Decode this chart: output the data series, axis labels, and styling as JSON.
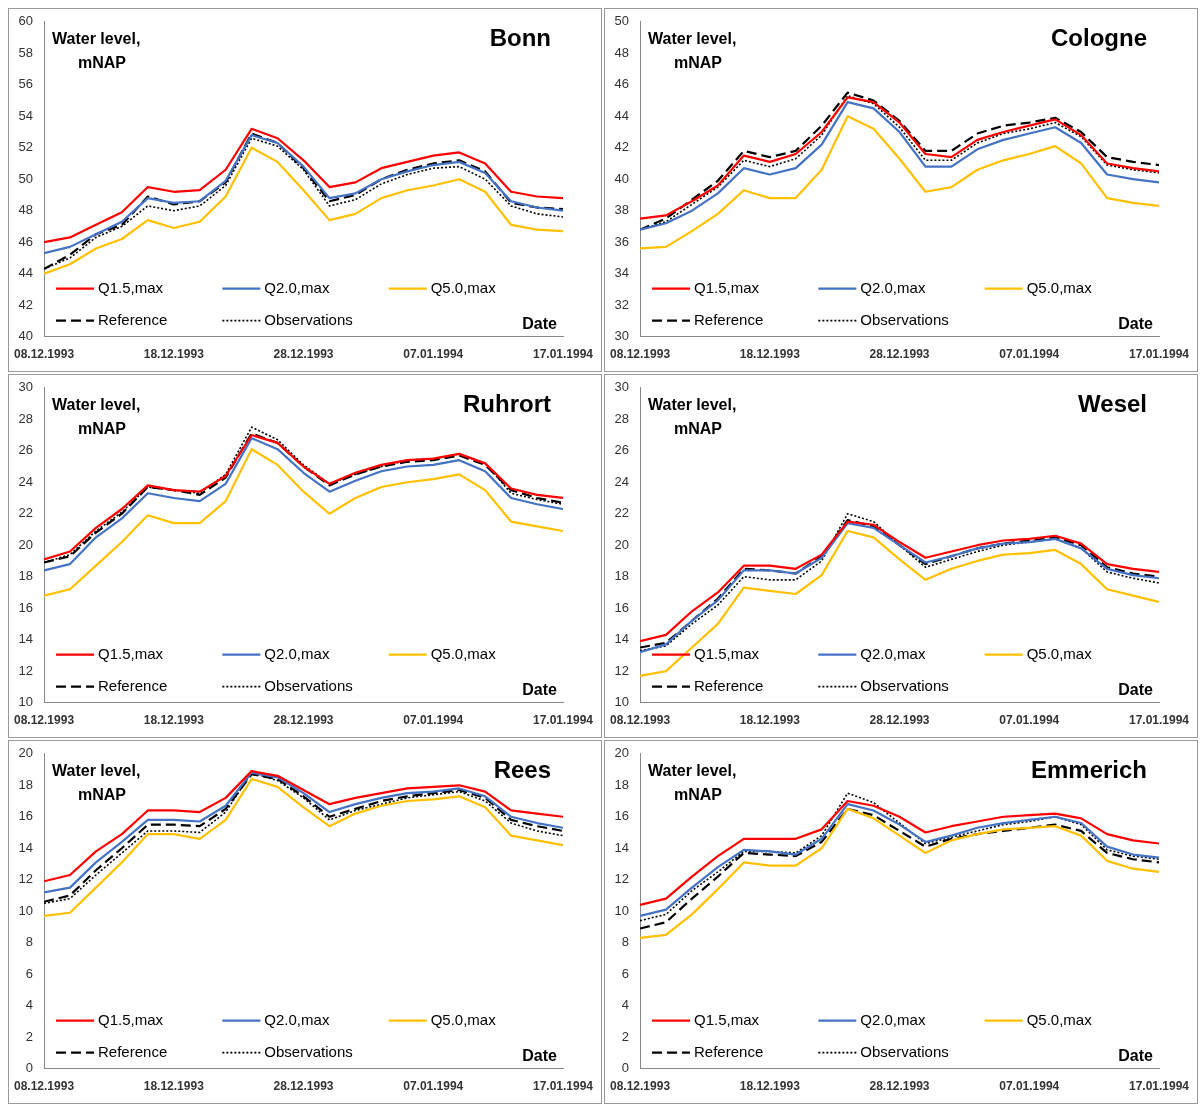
{
  "chart_data": [
    {
      "type": "line",
      "title": "Bonn",
      "ylabel": "Water level, mNAP",
      "xlabel": "Date",
      "legend": "bottom",
      "ylim": [
        40,
        60
      ],
      "yticks": [
        40,
        42,
        44,
        46,
        48,
        50,
        52,
        54,
        56,
        58,
        60
      ],
      "xlim": [
        "1993-12-08",
        "1994-01-17"
      ],
      "xticks": [
        {
          "value": "1993-12-08",
          "label": "08.12.1993"
        },
        {
          "value": "1993-12-18",
          "label": "18.12.1993"
        },
        {
          "value": "1993-12-28",
          "label": "28.12.1993"
        },
        {
          "value": "1994-01-07",
          "label": "07.01.1994"
        },
        {
          "value": "1994-01-17",
          "label": "17.01.1994"
        }
      ],
      "x": [
        "1993-12-08",
        "1993-12-10",
        "1993-12-12",
        "1993-12-14",
        "1993-12-16",
        "1993-12-18",
        "1993-12-20",
        "1993-12-22",
        "1993-12-24",
        "1993-12-26",
        "1993-12-28",
        "1993-12-30",
        "1994-01-01",
        "1994-01-03",
        "1994-01-05",
        "1994-01-07",
        "1994-01-09",
        "1994-01-11",
        "1994-01-13",
        "1994-01-15",
        "1994-01-17"
      ],
      "series": [
        {
          "name": "Q1.5,max",
          "color": "#ff0000",
          "line_style": "solid",
          "values": [
            46.0,
            46.3,
            47.1,
            47.9,
            49.5,
            49.2,
            49.3,
            50.6,
            53.2,
            52.6,
            51.2,
            49.5,
            49.8,
            50.7,
            51.1,
            51.5,
            51.7,
            51.0,
            49.2,
            48.9,
            48.8
          ]
        },
        {
          "name": "Q2.0,max",
          "color": "#4472c4",
          "line_style": "solid",
          "values": [
            45.3,
            45.7,
            46.5,
            47.3,
            48.8,
            48.5,
            48.6,
            49.9,
            52.8,
            52.3,
            50.8,
            48.8,
            49.1,
            50.0,
            50.5,
            50.9,
            51.1,
            50.4,
            48.6,
            48.2,
            48.0
          ]
        },
        {
          "name": "Q5.0,max",
          "color": "#ffc000",
          "line_style": "solid",
          "values": [
            44.0,
            44.6,
            45.6,
            46.2,
            47.4,
            46.9,
            47.3,
            48.9,
            52.0,
            51.1,
            49.3,
            47.4,
            47.8,
            48.8,
            49.3,
            49.6,
            50.0,
            49.2,
            47.1,
            46.8,
            46.7
          ]
        },
        {
          "name": "Reference",
          "color": "#000000",
          "line_style": "dashed",
          "values": [
            44.3,
            45.2,
            46.5,
            47.1,
            48.9,
            48.4,
            48.6,
            49.8,
            52.9,
            52.3,
            50.7,
            48.6,
            49.0,
            50.0,
            50.6,
            51.0,
            51.2,
            50.5,
            48.5,
            48.2,
            48.1
          ]
        },
        {
          "name": "Observations",
          "color": "#000000",
          "line_style": "dotted",
          "values": [
            44.3,
            45.0,
            46.3,
            47.0,
            48.3,
            48.0,
            48.3,
            49.6,
            52.6,
            52.1,
            50.6,
            48.3,
            48.7,
            49.7,
            50.3,
            50.7,
            50.8,
            50.0,
            48.3,
            47.8,
            47.6
          ]
        }
      ]
    },
    {
      "type": "line",
      "title": "Cologne",
      "ylabel": "Water level, mNAP",
      "xlabel": "Date",
      "legend": "bottom",
      "ylim": [
        30,
        50
      ],
      "yticks": [
        30,
        32,
        34,
        36,
        38,
        40,
        42,
        44,
        46,
        48,
        50
      ],
      "xlim": [
        "1993-12-08",
        "1994-01-17"
      ],
      "xticks": [
        {
          "value": "1993-12-08",
          "label": "08.12.1993"
        },
        {
          "value": "1993-12-18",
          "label": "18.12.1993"
        },
        {
          "value": "1993-12-28",
          "label": "28.12.1993"
        },
        {
          "value": "1994-01-07",
          "label": "07.01.1994"
        },
        {
          "value": "1994-01-17",
          "label": "17.01.1994"
        }
      ],
      "x": [
        "1993-12-08",
        "1993-12-10",
        "1993-12-12",
        "1993-12-14",
        "1993-12-16",
        "1993-12-18",
        "1993-12-20",
        "1993-12-22",
        "1993-12-24",
        "1993-12-26",
        "1993-12-28",
        "1993-12-30",
        "1994-01-01",
        "1994-01-03",
        "1994-01-05",
        "1994-01-07",
        "1994-01-09",
        "1994-01-11",
        "1994-01-13",
        "1994-01-15",
        "1994-01-17"
      ],
      "series": [
        {
          "name": "Q1.5,max",
          "color": "#ff0000",
          "line_style": "solid",
          "values": [
            37.5,
            37.7,
            38.6,
            39.6,
            41.5,
            41.1,
            41.6,
            43.0,
            45.2,
            44.9,
            43.6,
            41.6,
            41.4,
            42.5,
            43.0,
            43.4,
            43.8,
            42.8,
            41.0,
            40.7,
            40.5
          ]
        },
        {
          "name": "Q2.0,max",
          "color": "#4472c4",
          "line_style": "solid",
          "values": [
            36.8,
            37.2,
            38.0,
            39.1,
            40.7,
            40.3,
            40.7,
            42.2,
            44.9,
            44.5,
            43.0,
            40.8,
            40.8,
            41.9,
            42.5,
            42.9,
            43.3,
            42.3,
            40.3,
            40.0,
            39.8
          ]
        },
        {
          "name": "Q5.0,max",
          "color": "#ffc000",
          "line_style": "solid",
          "values": [
            35.6,
            35.7,
            36.7,
            37.8,
            39.3,
            38.8,
            38.8,
            40.6,
            44.0,
            43.2,
            41.3,
            39.2,
            39.5,
            40.6,
            41.2,
            41.6,
            42.1,
            41.0,
            38.8,
            38.5,
            38.3
          ]
        },
        {
          "name": "Reference",
          "color": "#000000",
          "line_style": "dashed",
          "values": [
            36.8,
            37.5,
            38.7,
            39.9,
            41.8,
            41.4,
            41.8,
            43.4,
            45.5,
            45.0,
            43.7,
            41.8,
            41.8,
            42.9,
            43.4,
            43.6,
            43.9,
            43.0,
            41.4,
            41.1,
            40.9
          ]
        },
        {
          "name": "Observations",
          "color": "#000000",
          "line_style": "dotted",
          "values": [
            36.8,
            37.3,
            38.4,
            39.5,
            41.2,
            40.8,
            41.3,
            42.8,
            45.3,
            44.8,
            43.3,
            41.2,
            41.2,
            42.3,
            42.9,
            43.2,
            43.6,
            42.7,
            40.9,
            40.6,
            40.4
          ]
        }
      ]
    },
    {
      "type": "line",
      "title": "Ruhrort",
      "ylabel": "Water level, mNAP",
      "xlabel": "Date",
      "legend": "bottom",
      "ylim": [
        10,
        30
      ],
      "yticks": [
        10,
        12,
        14,
        16,
        18,
        20,
        22,
        24,
        26,
        28,
        30
      ],
      "xlim": [
        "1993-12-08",
        "1994-01-17"
      ],
      "xticks": [
        {
          "value": "1993-12-08",
          "label": "08.12.1993"
        },
        {
          "value": "1993-12-18",
          "label": "18.12.1993"
        },
        {
          "value": "1993-12-28",
          "label": "28.12.1993"
        },
        {
          "value": "1994-01-07",
          "label": "07.01.1994"
        },
        {
          "value": "1994-01-17",
          "label": "17.01.1994"
        }
      ],
      "x": [
        "1993-12-08",
        "1993-12-10",
        "1993-12-12",
        "1993-12-14",
        "1993-12-16",
        "1993-12-18",
        "1993-12-20",
        "1993-12-22",
        "1993-12-24",
        "1993-12-26",
        "1993-12-28",
        "1993-12-30",
        "1994-01-01",
        "1994-01-03",
        "1994-01-05",
        "1994-01-07",
        "1994-01-09",
        "1994-01-11",
        "1994-01-13",
        "1994-01-15",
        "1994-01-17"
      ],
      "series": [
        {
          "name": "Q1.5,max",
          "color": "#ff0000",
          "line_style": "solid",
          "values": [
            19.1,
            19.6,
            21.1,
            22.3,
            23.8,
            23.5,
            23.4,
            24.4,
            27.0,
            26.5,
            25.0,
            23.9,
            24.6,
            25.1,
            25.4,
            25.5,
            25.8,
            25.2,
            23.6,
            23.2,
            23.0
          ]
        },
        {
          "name": "Q2.0,max",
          "color": "#4472c4",
          "line_style": "solid",
          "values": [
            18.4,
            18.8,
            20.5,
            21.7,
            23.3,
            23.0,
            22.8,
            23.9,
            26.8,
            26.1,
            24.6,
            23.4,
            24.1,
            24.7,
            25.0,
            25.1,
            25.4,
            24.7,
            23.0,
            22.6,
            22.3
          ]
        },
        {
          "name": "Q5.0,max",
          "color": "#ffc000",
          "line_style": "solid",
          "values": [
            16.8,
            17.2,
            18.7,
            20.2,
            21.9,
            21.4,
            21.4,
            22.8,
            26.1,
            25.1,
            23.4,
            22.0,
            23.0,
            23.7,
            24.0,
            24.2,
            24.5,
            23.5,
            21.5,
            21.2,
            20.9
          ]
        },
        {
          "name": "Reference",
          "color": "#000000",
          "line_style": "dashed",
          "values": [
            18.9,
            19.3,
            20.8,
            22.0,
            23.7,
            23.5,
            23.2,
            24.3,
            27.1,
            26.5,
            25.0,
            23.8,
            24.5,
            25.0,
            25.3,
            25.4,
            25.7,
            25.1,
            23.5,
            23.0,
            22.7
          ]
        },
        {
          "name": "Observations",
          "color": "#000000",
          "line_style": "dotted",
          "values": [
            18.9,
            19.4,
            20.9,
            22.1,
            23.7,
            23.5,
            23.3,
            24.5,
            27.5,
            26.7,
            25.1,
            23.9,
            24.5,
            25.0,
            25.4,
            25.5,
            25.8,
            25.2,
            23.3,
            22.9,
            22.6
          ]
        }
      ]
    },
    {
      "type": "line",
      "title": "Wesel",
      "ylabel": "Water level, mNAP",
      "xlabel": "Date",
      "legend": "bottom",
      "ylim": [
        10,
        30
      ],
      "yticks": [
        10,
        12,
        14,
        16,
        18,
        20,
        22,
        24,
        26,
        28,
        30
      ],
      "xlim": [
        "1993-12-08",
        "1994-01-17"
      ],
      "xticks": [
        {
          "value": "1993-12-08",
          "label": "08.12.1993"
        },
        {
          "value": "1993-12-18",
          "label": "18.12.1993"
        },
        {
          "value": "1993-12-28",
          "label": "28.12.1993"
        },
        {
          "value": "1994-01-07",
          "label": "07.01.1994"
        },
        {
          "value": "1994-01-17",
          "label": "17.01.1994"
        }
      ],
      "x": [
        "1993-12-08",
        "1993-12-10",
        "1993-12-12",
        "1993-12-14",
        "1993-12-16",
        "1993-12-18",
        "1993-12-20",
        "1993-12-22",
        "1993-12-24",
        "1993-12-26",
        "1993-12-28",
        "1993-12-30",
        "1994-01-01",
        "1994-01-03",
        "1994-01-05",
        "1994-01-07",
        "1994-01-09",
        "1994-01-11",
        "1994-01-13",
        "1994-01-15",
        "1994-01-17"
      ],
      "series": [
        {
          "name": "Q1.5,max",
          "color": "#ff0000",
          "line_style": "solid",
          "values": [
            13.9,
            14.3,
            15.8,
            17.0,
            18.7,
            18.7,
            18.5,
            19.4,
            21.5,
            21.3,
            20.2,
            19.2,
            19.6,
            20.0,
            20.3,
            20.4,
            20.6,
            20.1,
            18.8,
            18.5,
            18.3
          ]
        },
        {
          "name": "Q2.0,max",
          "color": "#4472c4",
          "line_style": "solid",
          "values": [
            13.2,
            13.7,
            15.2,
            16.5,
            18.4,
            18.4,
            18.2,
            19.2,
            21.4,
            21.1,
            20.0,
            18.9,
            19.3,
            19.8,
            20.1,
            20.2,
            20.4,
            19.8,
            18.5,
            18.1,
            17.9
          ]
        },
        {
          "name": "Q5.0,max",
          "color": "#ffc000",
          "line_style": "solid",
          "values": [
            11.7,
            12.0,
            13.5,
            15.0,
            17.3,
            17.1,
            16.9,
            18.1,
            20.9,
            20.5,
            19.1,
            17.8,
            18.5,
            19.0,
            19.4,
            19.5,
            19.7,
            18.8,
            17.2,
            16.8,
            16.4
          ]
        },
        {
          "name": "Reference",
          "color": "#000000",
          "line_style": "dashed",
          "values": [
            13.5,
            13.8,
            15.2,
            16.6,
            18.5,
            18.4,
            18.2,
            19.3,
            21.6,
            21.2,
            20.0,
            18.8,
            19.3,
            19.8,
            20.1,
            20.3,
            20.5,
            20.0,
            18.6,
            18.2,
            18.0
          ]
        },
        {
          "name": "Observations",
          "color": "#000000",
          "line_style": "dotted",
          "values": [
            13.3,
            13.6,
            15.0,
            16.2,
            18.0,
            17.8,
            17.8,
            19.0,
            22.0,
            21.5,
            20.0,
            18.6,
            19.1,
            19.6,
            20.0,
            20.2,
            20.4,
            19.8,
            18.3,
            17.9,
            17.6
          ]
        }
      ]
    },
    {
      "type": "line",
      "title": "Rees",
      "ylabel": "Water level, mNAP",
      "xlabel": "Date",
      "legend": "bottom",
      "ylim": [
        0,
        20
      ],
      "yticks": [
        0,
        2,
        4,
        6,
        8,
        10,
        12,
        14,
        16,
        18,
        20
      ],
      "xlim": [
        "1993-12-08",
        "1994-01-17"
      ],
      "xticks": [
        {
          "value": "1993-12-08",
          "label": "08.12.1993"
        },
        {
          "value": "1993-12-18",
          "label": "18.12.1993"
        },
        {
          "value": "1993-12-28",
          "label": "28.12.1993"
        },
        {
          "value": "1994-01-07",
          "label": "07.01.1994"
        },
        {
          "value": "1994-01-17",
          "label": "17.01.1994"
        }
      ],
      "x": [
        "1993-12-08",
        "1993-12-10",
        "1993-12-12",
        "1993-12-14",
        "1993-12-16",
        "1993-12-18",
        "1993-12-20",
        "1993-12-22",
        "1993-12-24",
        "1993-12-26",
        "1993-12-28",
        "1993-12-30",
        "1994-01-01",
        "1994-01-03",
        "1994-01-05",
        "1994-01-07",
        "1994-01-09",
        "1994-01-11",
        "1994-01-13",
        "1994-01-15",
        "1994-01-17"
      ],
      "series": [
        {
          "name": "Q1.5,max",
          "color": "#ff0000",
          "line_style": "solid",
          "values": [
            11.9,
            12.3,
            13.8,
            14.9,
            16.4,
            16.4,
            16.3,
            17.2,
            18.9,
            18.6,
            17.7,
            16.8,
            17.2,
            17.5,
            17.8,
            17.9,
            18.0,
            17.6,
            16.4,
            16.2,
            16.0
          ]
        },
        {
          "name": "Q2.0,max",
          "color": "#4472c4",
          "line_style": "solid",
          "values": [
            11.2,
            11.5,
            13.1,
            14.4,
            15.8,
            15.8,
            15.7,
            16.7,
            18.8,
            18.5,
            17.5,
            16.3,
            16.8,
            17.2,
            17.5,
            17.6,
            17.8,
            17.3,
            16.0,
            15.6,
            15.3
          ]
        },
        {
          "name": "Q5.0,max",
          "color": "#ffc000",
          "line_style": "solid",
          "values": [
            9.7,
            9.9,
            11.5,
            13.1,
            14.9,
            14.9,
            14.6,
            15.8,
            18.4,
            17.9,
            16.6,
            15.4,
            16.2,
            16.7,
            17.0,
            17.1,
            17.3,
            16.6,
            14.8,
            14.5,
            14.2
          ]
        },
        {
          "name": "Reference",
          "color": "#000000",
          "line_style": "dashed",
          "values": [
            10.6,
            11.0,
            12.6,
            14.0,
            15.5,
            15.5,
            15.4,
            16.5,
            18.7,
            18.4,
            17.3,
            16.0,
            16.5,
            17.0,
            17.3,
            17.5,
            17.7,
            17.2,
            15.8,
            15.4,
            15.1
          ]
        },
        {
          "name": "Observations",
          "color": "#000000",
          "line_style": "dotted",
          "values": [
            10.5,
            10.8,
            12.3,
            13.7,
            15.1,
            15.1,
            15.0,
            16.3,
            18.8,
            18.3,
            17.2,
            15.8,
            16.4,
            16.8,
            17.2,
            17.4,
            17.6,
            17.0,
            15.6,
            15.1,
            14.8
          ]
        }
      ]
    },
    {
      "type": "line",
      "title": "Emmerich",
      "ylabel": "Water level, mNAP",
      "xlabel": "Date",
      "legend": "bottom",
      "ylim": [
        0,
        20
      ],
      "yticks": [
        0,
        2,
        4,
        6,
        8,
        10,
        12,
        14,
        16,
        18,
        20
      ],
      "xlim": [
        "1993-12-08",
        "1994-01-17"
      ],
      "xticks": [
        {
          "value": "1993-12-08",
          "label": "08.12.1993"
        },
        {
          "value": "1993-12-18",
          "label": "18.12.1993"
        },
        {
          "value": "1993-12-28",
          "label": "28.12.1993"
        },
        {
          "value": "1994-01-07",
          "label": "07.01.1994"
        },
        {
          "value": "1994-01-17",
          "label": "17.01.1994"
        }
      ],
      "x": [
        "1993-12-08",
        "1993-12-10",
        "1993-12-12",
        "1993-12-14",
        "1993-12-16",
        "1993-12-18",
        "1993-12-20",
        "1993-12-22",
        "1993-12-24",
        "1993-12-26",
        "1993-12-28",
        "1993-12-30",
        "1994-01-01",
        "1994-01-03",
        "1994-01-05",
        "1994-01-07",
        "1994-01-09",
        "1994-01-11",
        "1994-01-13",
        "1994-01-15",
        "1994-01-17"
      ],
      "series": [
        {
          "name": "Q1.5,max",
          "color": "#ff0000",
          "line_style": "solid",
          "values": [
            10.4,
            10.8,
            12.2,
            13.5,
            14.6,
            14.6,
            14.6,
            15.2,
            17.0,
            16.7,
            16.0,
            15.0,
            15.4,
            15.7,
            16.0,
            16.1,
            16.2,
            15.9,
            14.9,
            14.5,
            14.3
          ]
        },
        {
          "name": "Q2.0,max",
          "color": "#4472c4",
          "line_style": "solid",
          "values": [
            9.7,
            10.1,
            11.5,
            12.8,
            13.9,
            13.8,
            13.6,
            14.6,
            16.8,
            16.4,
            15.5,
            14.4,
            14.8,
            15.3,
            15.6,
            15.8,
            16.0,
            15.6,
            14.1,
            13.6,
            13.4
          ]
        },
        {
          "name": "Q5.0,max",
          "color": "#ffc000",
          "line_style": "solid",
          "values": [
            8.3,
            8.5,
            9.8,
            11.4,
            13.1,
            12.9,
            12.9,
            14.0,
            16.5,
            15.9,
            14.8,
            13.7,
            14.5,
            14.9,
            15.2,
            15.3,
            15.4,
            14.8,
            13.2,
            12.7,
            12.5
          ]
        },
        {
          "name": "Reference",
          "color": "#000000",
          "line_style": "dashed",
          "values": [
            8.9,
            9.3,
            10.8,
            12.2,
            13.7,
            13.6,
            13.5,
            14.4,
            16.5,
            16.1,
            15.1,
            14.1,
            14.6,
            14.9,
            15.1,
            15.3,
            15.5,
            15.1,
            13.7,
            13.3,
            13.1
          ]
        },
        {
          "name": "Observations",
          "color": "#000000",
          "line_style": "dotted",
          "values": [
            9.4,
            9.8,
            11.3,
            12.5,
            13.8,
            13.8,
            13.7,
            14.8,
            17.5,
            16.9,
            15.6,
            14.3,
            14.7,
            15.1,
            15.5,
            15.7,
            16.0,
            15.5,
            13.9,
            13.5,
            13.3
          ]
        }
      ]
    }
  ]
}
